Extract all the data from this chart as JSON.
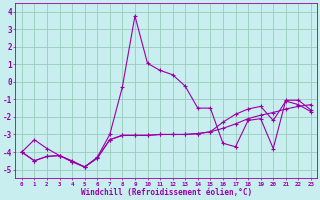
{
  "xlabel": "Windchill (Refroidissement éolien,°C)",
  "bg_color": "#c8eef0",
  "line_color": "#9900aa",
  "grid_color": "#99ccbb",
  "xlim": [
    -0.5,
    23.5
  ],
  "ylim": [
    -5.5,
    4.5
  ],
  "xticks": [
    0,
    1,
    2,
    3,
    4,
    5,
    6,
    7,
    8,
    9,
    10,
    11,
    12,
    13,
    14,
    15,
    16,
    17,
    18,
    19,
    20,
    21,
    22,
    23
  ],
  "yticks": [
    -5,
    -4,
    -3,
    -2,
    -1,
    0,
    1,
    2,
    3,
    4
  ],
  "s1_x": [
    0,
    1,
    2,
    3,
    4,
    5,
    6,
    7,
    8,
    9,
    10,
    11,
    12,
    13,
    14,
    15,
    16,
    17,
    18,
    19,
    20,
    21,
    22,
    23
  ],
  "s1_y": [
    -4.0,
    -3.3,
    -3.8,
    -4.2,
    -4.5,
    -4.85,
    -4.3,
    -3.0,
    -0.3,
    3.75,
    1.05,
    0.65,
    0.4,
    -0.25,
    -1.5,
    -1.5,
    -3.5,
    -3.7,
    -2.2,
    -2.1,
    -3.8,
    -1.05,
    -1.05,
    -1.6
  ],
  "s2_x": [
    0,
    1,
    2,
    3,
    4,
    5,
    6,
    7,
    8,
    9,
    10,
    11,
    12,
    13,
    14,
    15,
    16,
    17,
    18,
    19,
    20,
    21,
    22,
    23
  ],
  "s2_y": [
    -4.0,
    -4.5,
    -4.25,
    -4.2,
    -4.55,
    -4.85,
    -4.35,
    -3.3,
    -3.05,
    -3.05,
    -3.05,
    -3.0,
    -3.0,
    -3.0,
    -2.95,
    -2.85,
    -2.65,
    -2.4,
    -2.1,
    -1.9,
    -1.75,
    -1.55,
    -1.4,
    -1.3
  ],
  "s3_x": [
    0,
    1,
    2,
    3,
    4,
    5,
    6,
    7,
    8,
    9,
    10,
    11,
    12,
    13,
    14,
    15,
    16,
    17,
    18,
    19,
    20,
    21,
    22,
    23
  ],
  "s3_y": [
    -4.0,
    -4.5,
    -4.25,
    -4.2,
    -4.55,
    -4.85,
    -4.35,
    -3.3,
    -3.05,
    -3.05,
    -3.05,
    -3.0,
    -3.0,
    -3.0,
    -2.95,
    -2.85,
    -2.3,
    -1.85,
    -1.55,
    -1.4,
    -2.2,
    -1.1,
    -1.3,
    -1.7
  ]
}
